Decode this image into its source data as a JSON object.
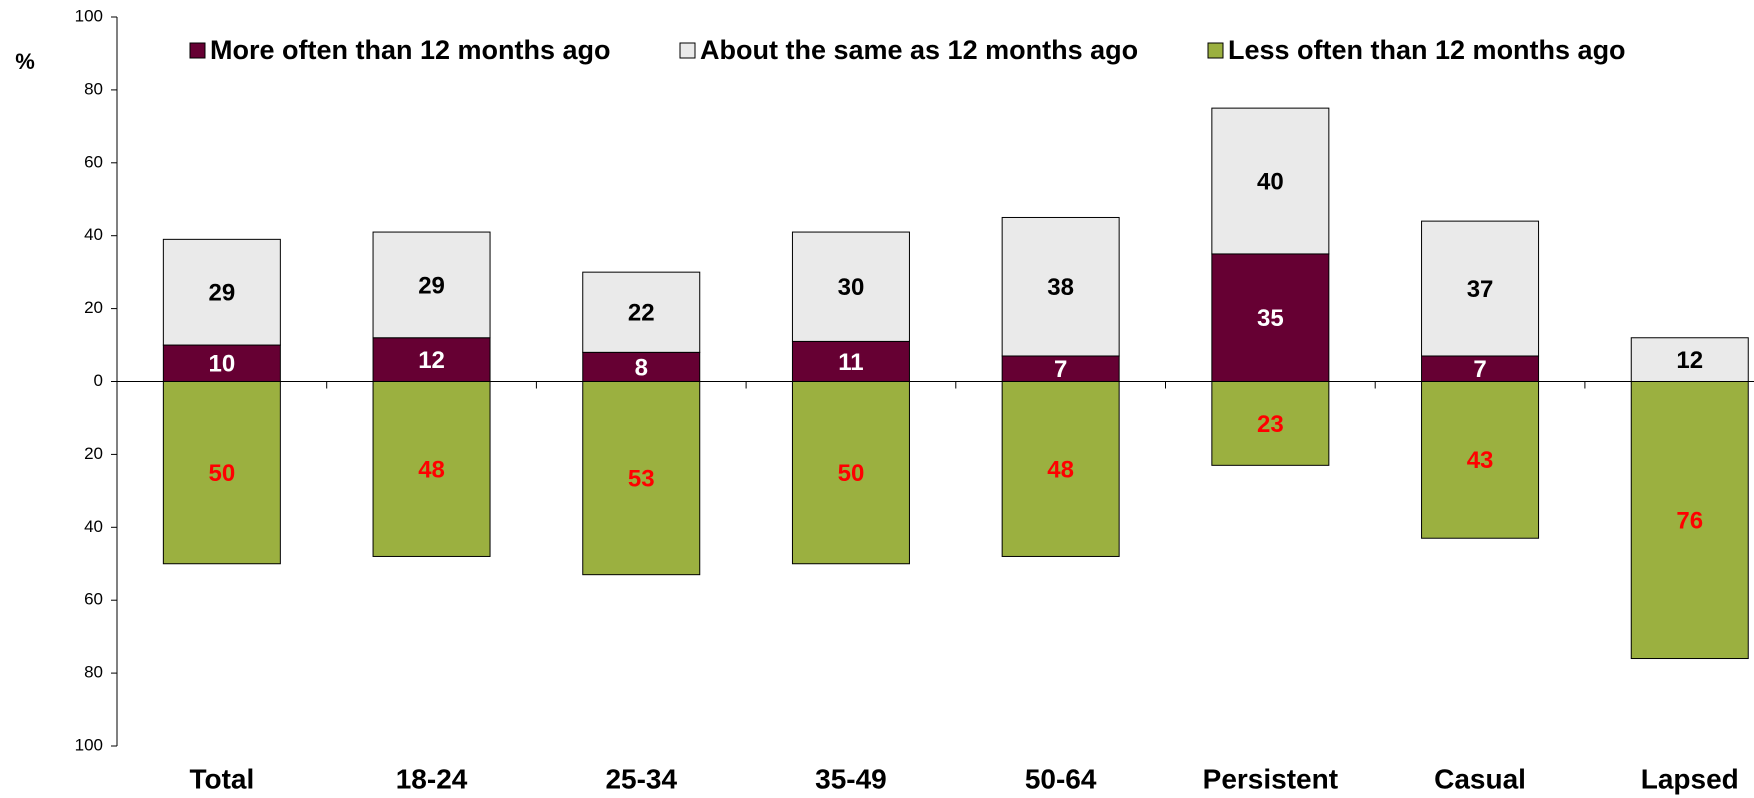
{
  "chart_data": {
    "type": "diverging_stacked_bar",
    "y_label": "%",
    "categories": [
      "Total",
      "18-24",
      "25-34",
      "35-49",
      "50-64",
      "Persistent",
      "Casual",
      "Lapsed"
    ],
    "series": [
      {
        "name": "More often than 12 months ago",
        "color": "#660033",
        "label_color": "#ffffff",
        "values": [
          10,
          12,
          8,
          11,
          7,
          35,
          7,
          null
        ]
      },
      {
        "name": "About the same as 12 months ago",
        "color": "#eaeaea",
        "label_color": "#000000",
        "values": [
          29,
          29,
          22,
          30,
          38,
          40,
          37,
          12
        ]
      },
      {
        "name": "Less often than 12 months ago",
        "color": "#9bb040",
        "label_color": "#ff0000",
        "values": [
          -50,
          -48,
          -53,
          -50,
          -48,
          -23,
          -43,
          -76
        ],
        "value_labels": [
          "50",
          "48",
          "53",
          "50",
          "48",
          "23",
          "43",
          "76"
        ]
      }
    ],
    "ylim": [
      -100,
      100
    ],
    "yticks": [
      {
        "value": -100,
        "label": "100"
      },
      {
        "value": -80,
        "label": "80"
      },
      {
        "value": -60,
        "label": "60"
      },
      {
        "value": -40,
        "label": "40"
      },
      {
        "value": -20,
        "label": "20"
      },
      0,
      20,
      40,
      60,
      80,
      100
    ],
    "legend": "top"
  }
}
